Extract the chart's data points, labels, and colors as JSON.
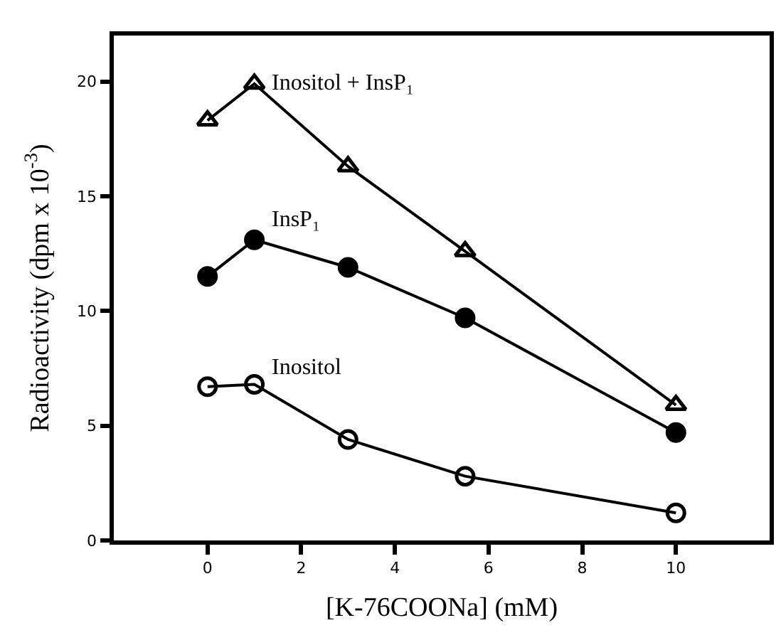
{
  "chart_data": {
    "type": "line",
    "xlabel": "[K-76COONa] (mM)",
    "ylabel": "Radioactivity (dpm x 10$^{-3}$)",
    "x": [
      0,
      1,
      3,
      5.5,
      10
    ],
    "series": [
      {
        "name": "Inositol + InsP₁",
        "color": "#000000",
        "marker": "triangle-open",
        "values": [
          18.3,
          19.9,
          16.3,
          12.6,
          5.9
        ]
      },
      {
        "name": "InsP₁",
        "color": "#000000",
        "marker": "circle",
        "values": [
          11.5,
          13.1,
          11.9,
          9.7,
          4.7
        ]
      },
      {
        "name": "Inositol",
        "color": "#000000",
        "marker": "circle-open",
        "values": [
          6.7,
          6.8,
          4.4,
          2.8,
          1.2
        ]
      }
    ],
    "xlim": [
      -2,
      12
    ],
    "ylim": [
      0,
      22
    ],
    "xticks": [
      0,
      2,
      4,
      6,
      8,
      10
    ],
    "yticks": [
      0,
      5,
      10,
      15,
      20
    ],
    "legend": false,
    "line_style": "solid"
  }
}
